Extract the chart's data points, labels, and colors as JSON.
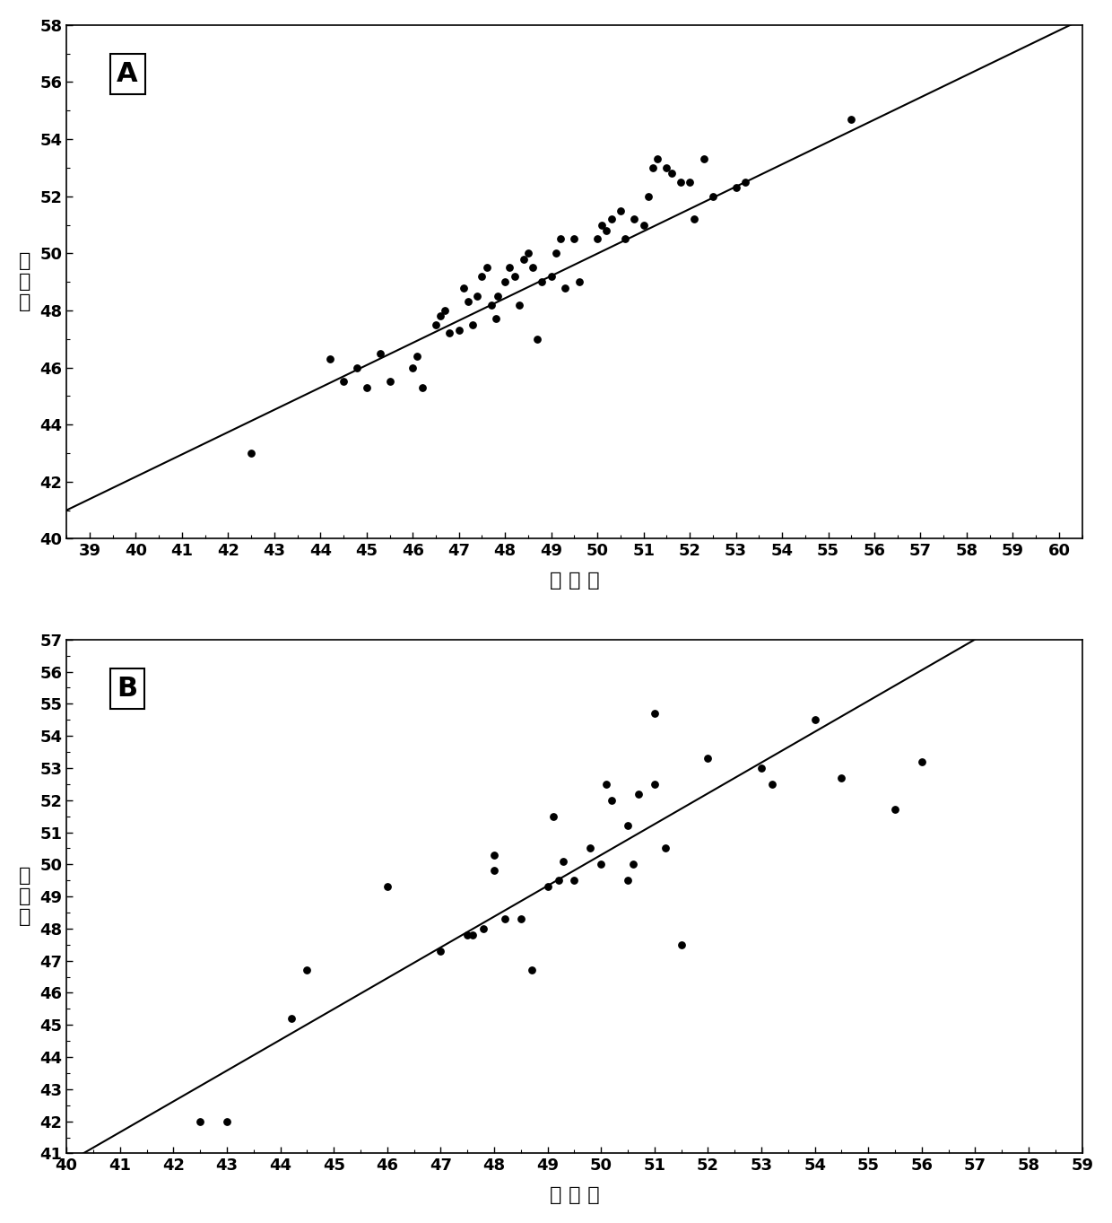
{
  "panel_A": {
    "label": "A",
    "scatter_x": [
      42.5,
      44.2,
      44.5,
      44.8,
      45.0,
      45.3,
      45.5,
      46.0,
      46.1,
      46.2,
      46.5,
      46.6,
      46.7,
      46.8,
      47.0,
      47.1,
      47.2,
      47.3,
      47.4,
      47.5,
      47.6,
      47.7,
      47.8,
      47.85,
      48.0,
      48.1,
      48.2,
      48.3,
      48.4,
      48.5,
      48.6,
      48.7,
      48.8,
      49.0,
      49.1,
      49.2,
      49.3,
      49.5,
      49.6,
      50.0,
      50.1,
      50.2,
      50.3,
      50.5,
      50.6,
      50.8,
      51.0,
      51.1,
      51.2,
      51.3,
      51.5,
      51.6,
      51.8,
      52.0,
      52.1,
      52.3,
      52.5,
      53.0,
      53.2,
      55.5
    ],
    "scatter_y": [
      43.0,
      46.3,
      45.5,
      46.0,
      45.3,
      46.5,
      45.5,
      46.0,
      46.4,
      45.3,
      47.5,
      47.8,
      48.0,
      47.2,
      47.3,
      48.8,
      48.3,
      47.5,
      48.5,
      49.2,
      49.5,
      48.2,
      47.7,
      48.5,
      49.0,
      49.5,
      49.2,
      48.2,
      49.8,
      50.0,
      49.5,
      47.0,
      49.0,
      49.2,
      50.0,
      50.5,
      48.8,
      50.5,
      49.0,
      50.5,
      51.0,
      50.8,
      51.2,
      51.5,
      50.5,
      51.2,
      51.0,
      52.0,
      53.0,
      53.3,
      53.0,
      52.8,
      52.5,
      52.5,
      51.2,
      53.3,
      52.0,
      52.3,
      52.5,
      54.7
    ],
    "line_x": [
      38.5,
      60.5
    ],
    "line_y": [
      41.0,
      58.2
    ],
    "xlim": [
      38.5,
      60.5
    ],
    "ylim": [
      40,
      58
    ],
    "xticks": [
      39,
      40,
      41,
      42,
      43,
      44,
      45,
      46,
      47,
      48,
      49,
      50,
      51,
      52,
      53,
      54,
      55,
      56,
      57,
      58,
      59,
      60
    ],
    "yticks": [
      40,
      42,
      44,
      46,
      48,
      50,
      52,
      54,
      56,
      58
    ],
    "xlabel": "参 考 値",
    "ylabel": "预测値"
  },
  "panel_B": {
    "label": "B",
    "scatter_x": [
      42.5,
      43.0,
      44.2,
      44.5,
      46.0,
      47.0,
      47.5,
      47.6,
      47.8,
      48.0,
      48.0,
      48.2,
      48.5,
      48.7,
      49.0,
      49.1,
      49.2,
      49.3,
      49.5,
      49.8,
      50.0,
      50.1,
      50.2,
      50.5,
      50.5,
      50.6,
      50.7,
      51.0,
      51.0,
      51.2,
      51.5,
      52.0,
      53.0,
      53.2,
      54.0,
      54.5,
      55.5,
      56.0
    ],
    "scatter_y": [
      42.0,
      42.0,
      45.2,
      46.7,
      49.3,
      47.3,
      47.8,
      47.8,
      48.0,
      49.8,
      50.3,
      48.3,
      48.3,
      46.7,
      49.3,
      51.5,
      49.5,
      50.1,
      49.5,
      50.5,
      50.0,
      52.5,
      52.0,
      49.5,
      51.2,
      50.0,
      52.2,
      54.7,
      52.5,
      50.5,
      47.5,
      53.3,
      53.0,
      52.5,
      54.5,
      52.7,
      51.7,
      53.2
    ],
    "line_x": [
      40.0,
      57.2
    ],
    "line_y": [
      40.7,
      57.2
    ],
    "xlim": [
      40,
      59
    ],
    "ylim": [
      41,
      57
    ],
    "xticks": [
      40,
      41,
      42,
      43,
      44,
      45,
      46,
      47,
      48,
      49,
      50,
      51,
      52,
      53,
      54,
      55,
      56,
      57,
      58,
      59
    ],
    "yticks": [
      41,
      42,
      43,
      44,
      45,
      46,
      47,
      48,
      49,
      50,
      51,
      52,
      53,
      54,
      55,
      56,
      57
    ],
    "xlabel": "参 考 値",
    "ylabel": "预测値"
  },
  "dot_color": "#000000",
  "line_color": "#000000",
  "bg_color": "#ffffff",
  "dot_size": 28,
  "line_width": 1.5
}
